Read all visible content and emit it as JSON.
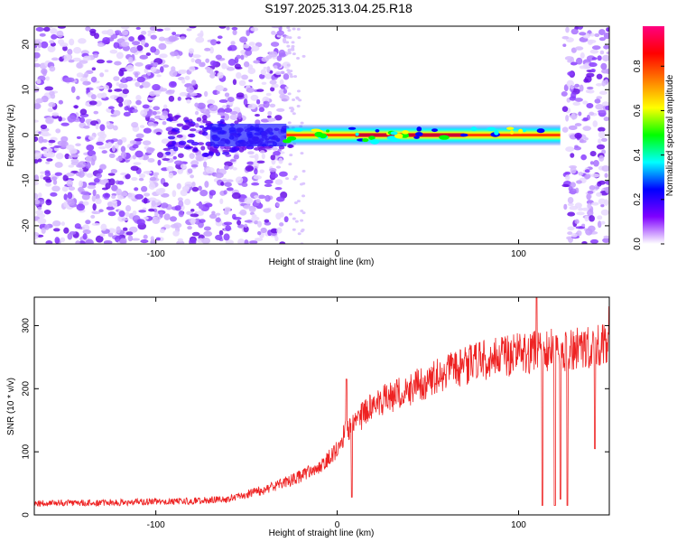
{
  "title": "S197.2025.313.04.25.R18",
  "chart_data": [
    {
      "type": "heatmap",
      "name": "spectrogram",
      "xlabel": "Height of straight line (km)",
      "ylabel": "Frequency (Hz)",
      "xlim": [
        -167,
        150
      ],
      "ylim": [
        -24,
        24
      ],
      "xticks": [
        -100,
        0,
        100
      ],
      "yticks": [
        -20,
        -10,
        0,
        10,
        20
      ],
      "colorbar": {
        "label": "Normalized spectral amplitude",
        "range": [
          0.0,
          0.98
        ],
        "ticks": [
          0.0,
          0.2,
          0.4,
          0.6,
          0.8
        ],
        "tick_labels": [
          "0.0",
          "0.2",
          "0.4",
          "0.6",
          "0.8"
        ],
        "colors": [
          "#ffffff",
          "#7f00ff",
          "#0000ff",
          "#00ffff",
          "#00ff00",
          "#ffff00",
          "#ff7f00",
          "#ff0000",
          "#ff0080"
        ]
      },
      "noise_regions": [
        [
          -167,
          -28
        ],
        [
          125,
          150
        ]
      ],
      "signal_band": {
        "x_start": -70,
        "x_end": 123,
        "center_freq_hz": 0,
        "peak_amplitude": 0.95
      }
    },
    {
      "type": "line",
      "name": "snr",
      "xlabel": "Height of straight line (km)",
      "ylabel": "SNR (10 * v/v)",
      "xlim": [
        -167,
        150
      ],
      "ylim": [
        0,
        345
      ],
      "xticks": [
        -100,
        0,
        100
      ],
      "yticks": [
        0,
        100,
        200,
        300
      ],
      "color": "#ee2222",
      "trend": {
        "x": [
          -167,
          -120,
          -80,
          -60,
          -40,
          -25,
          -10,
          0,
          5,
          10,
          20,
          40,
          60,
          80,
          100,
          110,
          125,
          140,
          150
        ],
        "y": [
          18,
          20,
          22,
          25,
          40,
          55,
          75,
          105,
          135,
          145,
          175,
          200,
          225,
          245,
          255,
          260,
          262,
          265,
          275
        ]
      },
      "spikes": [
        {
          "x": 5,
          "y": 215
        },
        {
          "x": 8,
          "y": 28
        },
        {
          "x": 110,
          "y": 345
        },
        {
          "x": 113,
          "y": 15
        },
        {
          "x": 120,
          "y": 15
        },
        {
          "x": 123,
          "y": 25
        },
        {
          "x": 127,
          "y": 15
        },
        {
          "x": 142,
          "y": 105
        },
        {
          "x": 150,
          "y": 330
        }
      ]
    }
  ]
}
